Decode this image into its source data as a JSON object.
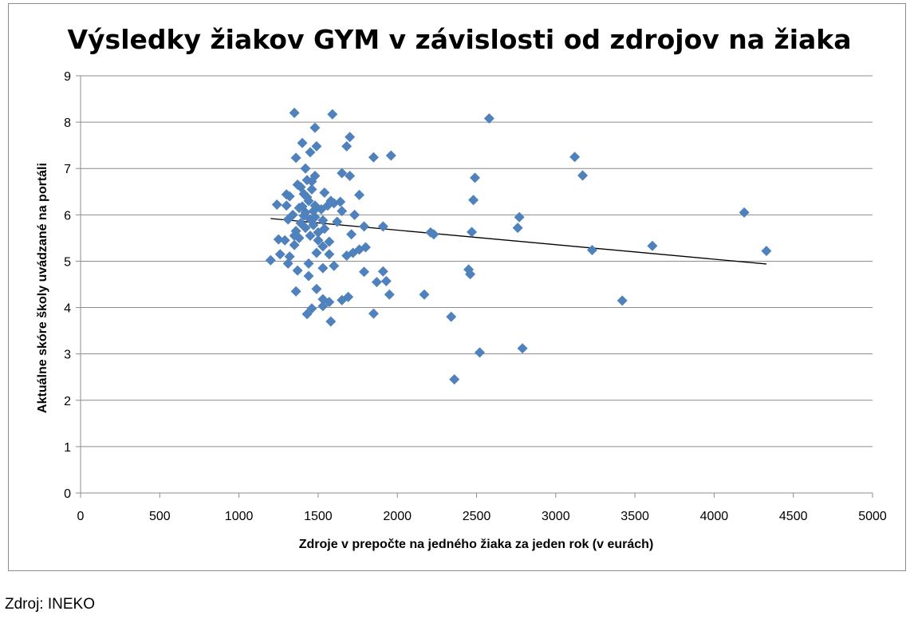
{
  "chart_data": {
    "type": "scatter",
    "title": "Výsledky žiakov GYM v závislosti od zdrojov na žiaka",
    "xlabel": "Zdroje v prepočte na jedného žiaka za jeden rok (v eurách)",
    "ylabel": "Aktuálne skóre školy uvádzané na portáli",
    "xlim": [
      0,
      5000
    ],
    "ylim": [
      0,
      9
    ],
    "xticks": [
      0,
      500,
      1000,
      1500,
      2000,
      2500,
      3000,
      3500,
      4000,
      4500,
      5000
    ],
    "yticks": [
      0,
      1,
      2,
      3,
      4,
      5,
      6,
      7,
      8,
      9
    ],
    "grid": "horizontal",
    "legend": "none",
    "marker_color": "#4f81bd",
    "trendline": {
      "x": [
        1200,
        4330
      ],
      "y": [
        5.92,
        4.94
      ],
      "color": "#000000"
    },
    "points": [
      [
        1350,
        8.2
      ],
      [
        1590,
        8.17
      ],
      [
        2580,
        8.08
      ],
      [
        1480,
        7.88
      ],
      [
        1700,
        7.68
      ],
      [
        1680,
        7.48
      ],
      [
        1490,
        7.48
      ],
      [
        1400,
        7.55
      ],
      [
        1450,
        7.35
      ],
      [
        1360,
        7.23
      ],
      [
        1850,
        7.24
      ],
      [
        1960,
        7.28
      ],
      [
        3120,
        7.25
      ],
      [
        3170,
        6.85
      ],
      [
        2490,
        6.8
      ],
      [
        1420,
        7.0
      ],
      [
        1480,
        6.84
      ],
      [
        1650,
        6.9
      ],
      [
        1700,
        6.84
      ],
      [
        1460,
        6.72
      ],
      [
        1370,
        6.65
      ],
      [
        1760,
        6.43
      ],
      [
        1540,
        6.48
      ],
      [
        1300,
        6.44
      ],
      [
        1320,
        6.4
      ],
      [
        2480,
        6.32
      ],
      [
        1580,
        6.3
      ],
      [
        1640,
        6.28
      ],
      [
        1600,
        6.25
      ],
      [
        1240,
        6.22
      ],
      [
        1300,
        6.2
      ],
      [
        1380,
        6.15
      ],
      [
        1520,
        6.12
      ],
      [
        1560,
        6.2
      ],
      [
        1650,
        6.08
      ],
      [
        1730,
        6.0
      ],
      [
        1420,
        6.05
      ],
      [
        1340,
        6.0
      ],
      [
        1310,
        5.9
      ],
      [
        1480,
        5.95
      ],
      [
        1530,
        5.88
      ],
      [
        1620,
        5.85
      ],
      [
        4190,
        6.05
      ],
      [
        2770,
        5.95
      ],
      [
        1790,
        5.75
      ],
      [
        1910,
        5.75
      ],
      [
        2760,
        5.72
      ],
      [
        2470,
        5.63
      ],
      [
        2210,
        5.62
      ],
      [
        2230,
        5.58
      ],
      [
        1710,
        5.58
      ],
      [
        1450,
        5.55
      ],
      [
        1380,
        5.5
      ],
      [
        1250,
        5.47
      ],
      [
        1290,
        5.45
      ],
      [
        1500,
        5.45
      ],
      [
        1570,
        5.42
      ],
      [
        1350,
        5.35
      ],
      [
        1530,
        5.32
      ],
      [
        1800,
        5.3
      ],
      [
        1760,
        5.25
      ],
      [
        1720,
        5.18
      ],
      [
        1680,
        5.12
      ],
      [
        1570,
        5.15
      ],
      [
        1490,
        5.18
      ],
      [
        1260,
        5.15
      ],
      [
        1320,
        5.1
      ],
      [
        1200,
        5.02
      ],
      [
        1310,
        4.95
      ],
      [
        1440,
        4.95
      ],
      [
        1600,
        4.9
      ],
      [
        1530,
        4.85
      ],
      [
        1370,
        4.8
      ],
      [
        1910,
        4.78
      ],
      [
        1790,
        4.77
      ],
      [
        2450,
        4.82
      ],
      [
        2460,
        4.72
      ],
      [
        1440,
        4.68
      ],
      [
        1930,
        4.57
      ],
      [
        1870,
        4.55
      ],
      [
        1490,
        4.4
      ],
      [
        1360,
        4.35
      ],
      [
        1950,
        4.28
      ],
      [
        2170,
        4.28
      ],
      [
        1690,
        4.23
      ],
      [
        1530,
        4.18
      ],
      [
        1650,
        4.16
      ],
      [
        1570,
        4.12
      ],
      [
        1530,
        4.03
      ],
      [
        1460,
        3.98
      ],
      [
        1430,
        3.86
      ],
      [
        1850,
        3.87
      ],
      [
        1580,
        3.7
      ],
      [
        2340,
        3.8
      ],
      [
        3610,
        5.33
      ],
      [
        4330,
        5.22
      ],
      [
        3230,
        5.24
      ],
      [
        3420,
        4.15
      ],
      [
        2790,
        3.12
      ],
      [
        2520,
        3.03
      ],
      [
        2360,
        2.45
      ],
      [
        1360,
        5.65
      ],
      [
        1420,
        5.72
      ],
      [
        1470,
        5.78
      ],
      [
        1390,
        5.82
      ],
      [
        1440,
        6.3
      ],
      [
        1410,
        6.45
      ],
      [
        1460,
        6.55
      ],
      [
        1430,
        6.38
      ],
      [
        1400,
        6.18
      ],
      [
        1470,
        6.08
      ],
      [
        1350,
        5.55
      ],
      [
        1500,
        5.62
      ],
      [
        1540,
        5.7
      ],
      [
        1450,
        5.9
      ],
      [
        1410,
        5.98
      ],
      [
        1480,
        6.2
      ],
      [
        1390,
        6.6
      ],
      [
        1430,
        6.75
      ]
    ]
  },
  "source_note": "Zdroj: INEKO"
}
